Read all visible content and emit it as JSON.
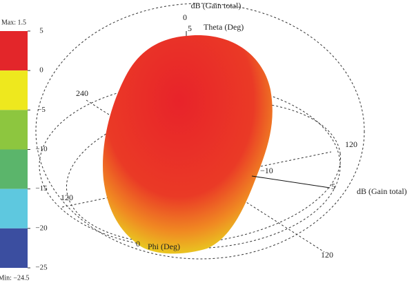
{
  "colorbar": {
    "max_label": "Max: 1.5",
    "min_label": "Min: −24.5",
    "range": [
      -25,
      5
    ],
    "ticks": [
      5,
      0,
      {
        "value": -5,
        "label": "−5"
      },
      {
        "value": -10,
        "label": "−10"
      },
      {
        "value": -15,
        "label": "−15"
      },
      {
        "value": -20,
        "label": "−20"
      },
      {
        "value": -25,
        "label": "−25"
      }
    ],
    "bands": [
      {
        "from": 5,
        "to": 0,
        "color": "#e3262a"
      },
      {
        "from": 0,
        "to": -5,
        "color": "#eee81e"
      },
      {
        "from": -5,
        "to": -10,
        "color": "#8dc63f"
      },
      {
        "from": -10,
        "to": -15,
        "color": "#5bb56b"
      },
      {
        "from": -15,
        "to": -20,
        "color": "#5ec8df"
      },
      {
        "from": -20,
        "to": -25,
        "color": "#3b4ea0"
      }
    ]
  },
  "labels": {
    "top_unit": "dB (Gain total)",
    "theta_zero": "0",
    "theta_five": "5",
    "theta": "Theta (Deg)",
    "phi_240": "240",
    "phi_120_right": "120",
    "minus_ten": "−10",
    "right_five": "5",
    "right_unit": "dB (Gain total)",
    "left_120": "120",
    "phi_zero": "0",
    "phi": "Phi (Deg)",
    "bottom_120": "120"
  }
}
